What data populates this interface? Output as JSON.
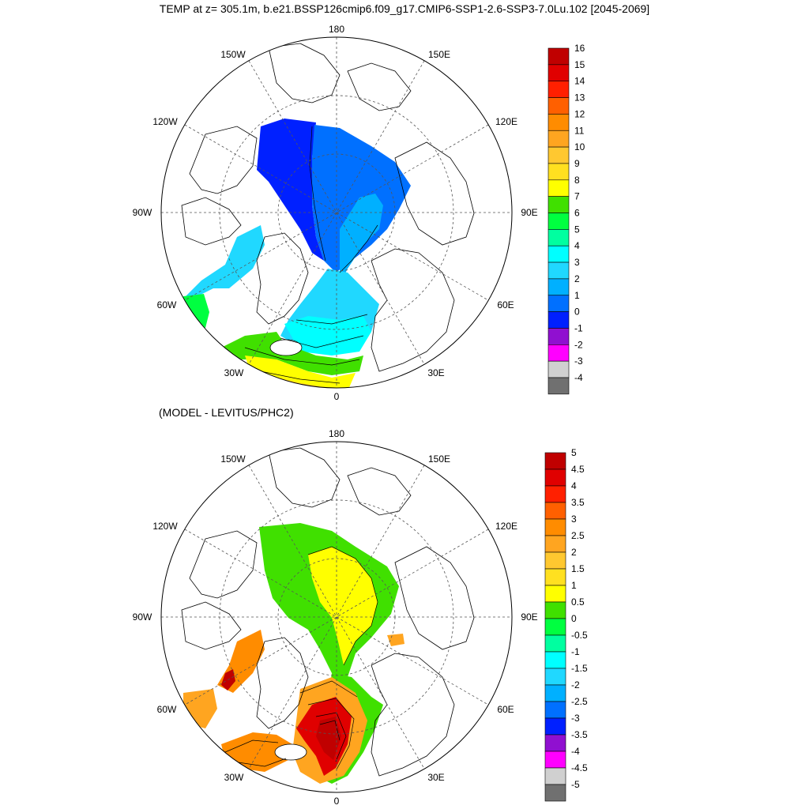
{
  "title": "TEMP at z= 305.1m, b.e21.BSSP126cmip6.f09_g17.CMIP6-SSP1-2.6-SSP3-7.0Lu.102 [2045-2069]",
  "lon_labels": [
    "180",
    "150E",
    "120E",
    "90E",
    "60E",
    "30E",
    "0",
    "30W",
    "60W",
    "90W",
    "120W",
    "150W"
  ],
  "panels": [
    {
      "id": "top",
      "subtitle": "",
      "colorbar": {
        "labels": [
          "16",
          "15",
          "14",
          "13",
          "12",
          "11",
          "10",
          "9",
          "8",
          "7",
          "6",
          "5",
          "4",
          "3",
          "2",
          "1",
          "0",
          "-1",
          "-2",
          "-3",
          "-4"
        ],
        "colors": [
          "#c00000",
          "#e00000",
          "#ff2000",
          "#ff6000",
          "#ff8c00",
          "#ffa520",
          "#ffc830",
          "#ffe020",
          "#ffff00",
          "#40e000",
          "#00ff40",
          "#00ffa0",
          "#00ffff",
          "#20d8ff",
          "#00b0ff",
          "#0070ff",
          "#0020ff",
          "#9010d0",
          "#ff00ff",
          "#d0d0d0",
          "#707070"
        ]
      }
    },
    {
      "id": "bottom",
      "subtitle": "(MODEL - LEVITUS/PHC2)",
      "colorbar": {
        "labels": [
          "5",
          "4.5",
          "4",
          "3.5",
          "3",
          "2.5",
          "2",
          "1.5",
          "1",
          "0.5",
          "0",
          "-0.5",
          "-1",
          "-1.5",
          "-2",
          "-2.5",
          "-3",
          "-3.5",
          "-4",
          "-4.5",
          "-5"
        ],
        "colors": [
          "#c00000",
          "#e00000",
          "#ff2000",
          "#ff6000",
          "#ff8c00",
          "#ffa520",
          "#ffc830",
          "#ffe020",
          "#ffff00",
          "#40e000",
          "#00ff40",
          "#00ffa0",
          "#00ffff",
          "#20d8ff",
          "#00b0ff",
          "#0070ff",
          "#0020ff",
          "#9010d0",
          "#ff00ff",
          "#d0d0d0",
          "#707070"
        ]
      }
    }
  ]
}
